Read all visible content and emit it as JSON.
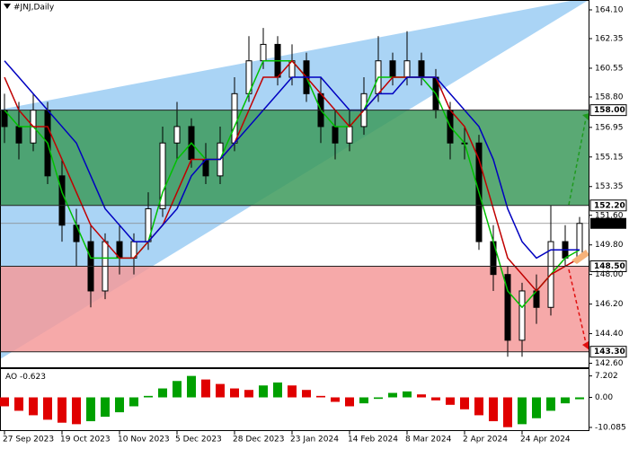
{
  "chart_data": {
    "type": "candlestick",
    "title": "#JNJ,Daily",
    "categories": [
      "27 Sep 2023",
      null,
      null,
      null,
      "19 Oct 2023",
      null,
      null,
      null,
      "10 Nov 2023",
      null,
      null,
      null,
      "5 Dec 2023",
      null,
      null,
      null,
      "28 Dec 2023",
      null,
      null,
      null,
      "23 Jan 2024",
      null,
      null,
      null,
      "14 Feb 2024",
      null,
      null,
      null,
      "8 Mar 2024",
      null,
      null,
      null,
      "2 Apr 2024",
      null,
      null,
      null,
      "24 Apr 2024",
      null,
      null,
      null,
      null
    ],
    "open": [
      158,
      157,
      156,
      158,
      154,
      151,
      150,
      147,
      150,
      149,
      150,
      152,
      156,
      157,
      155,
      154,
      156,
      159,
      161,
      162,
      160,
      161,
      159,
      157,
      156,
      157,
      159,
      161,
      160,
      161,
      160,
      158,
      156,
      156,
      150,
      148,
      144,
      147,
      146,
      150,
      149
    ],
    "high": [
      159,
      158.5,
      159,
      158.5,
      155,
      152,
      151,
      150.5,
      151,
      150.5,
      153,
      157,
      158.5,
      157.5,
      156,
      157,
      160,
      162.5,
      163,
      162.5,
      162,
      161.5,
      160,
      158,
      158,
      160,
      162.5,
      161.5,
      162.8,
      161.5,
      160.5,
      158.5,
      157,
      156.5,
      151,
      148.5,
      147.5,
      148,
      152.2,
      151,
      151.5
    ],
    "low": [
      156,
      155,
      155.5,
      153.5,
      150,
      148.5,
      146,
      146.5,
      148,
      148,
      149.5,
      151.5,
      155,
      154.5,
      153.5,
      153.5,
      155.5,
      158.5,
      160.5,
      159.5,
      159.5,
      158.5,
      156,
      155,
      155.5,
      156.5,
      158.5,
      159.5,
      159.5,
      159.5,
      157.5,
      155,
      155,
      149.5,
      147,
      143,
      143,
      145,
      145.5,
      148.5,
      148.8
    ],
    "close": [
      157,
      156,
      158,
      154,
      151,
      150,
      147,
      150,
      149,
      150,
      152,
      156,
      157,
      155,
      154,
      156,
      159,
      161,
      162,
      160,
      161,
      159,
      157,
      156,
      157,
      159,
      161,
      160,
      161,
      160,
      158,
      156,
      156,
      150,
      148,
      144,
      147,
      146,
      150,
      149,
      151.11
    ],
    "candle_up_color": "#ffffff",
    "candle_down_color": "#000000",
    "moving_averages": [
      {
        "color": "#00c000",
        "values": [
          158,
          157,
          157,
          156,
          153,
          151,
          149,
          149,
          149,
          149,
          150,
          153,
          155,
          156,
          155,
          155,
          157,
          159,
          161,
          161,
          161,
          160,
          158,
          157,
          157,
          158,
          160,
          160,
          160,
          160,
          159,
          157,
          156,
          153,
          150,
          147,
          146,
          147,
          148,
          149,
          149.5
        ]
      },
      {
        "color": "#c00000",
        "values": [
          160,
          158,
          157,
          157,
          155,
          153,
          151,
          150,
          149,
          149,
          150,
          151,
          153,
          155,
          155,
          155,
          156,
          158,
          160,
          160,
          161,
          160,
          159,
          158,
          157,
          158,
          159,
          160,
          160,
          160,
          160,
          158,
          157,
          155,
          152,
          149,
          148,
          147,
          148,
          148.5,
          149
        ]
      },
      {
        "color": "#0000c0",
        "values": [
          161,
          160,
          159,
          158,
          157,
          156,
          154,
          152,
          151,
          150,
          150,
          151,
          152,
          154,
          155,
          155,
          156,
          157,
          158,
          159,
          160,
          160,
          160,
          159,
          158,
          158,
          159,
          159,
          160,
          160,
          160,
          159,
          158,
          157,
          155,
          152,
          150,
          149,
          149.5,
          149.5,
          149.5
        ]
      }
    ],
    "ylim": [
      142.3,
      164.7
    ],
    "yticks": [
      {
        "value": 164.1,
        "label": "164.10"
      },
      162.35,
      160.55,
      {
        "value": 158.8,
        "label": "158.80"
      },
      156.95,
      155.15,
      153.35,
      {
        "value": 151.6,
        "label": "151.60"
      },
      {
        "value": 149.8,
        "label": "149.80"
      },
      {
        "value": 148,
        "label": "148.00"
      },
      {
        "value": 146.2,
        "label": "146.20"
      },
      {
        "value": 144.4,
        "label": "144.40"
      },
      {
        "value": 142.6,
        "label": "142.60"
      }
    ],
    "zones": [
      {
        "high": {
          "value": 158,
          "label": "158.00"
        },
        "low": {
          "value": 152.2,
          "label": "152.20"
        },
        "color": "#3d9a5c"
      },
      {
        "high": {
          "value": 148.5,
          "label": "148.50"
        },
        "low": {
          "value": 143.3,
          "label": "143.30"
        },
        "color": "#f59a9a"
      }
    ],
    "last_price": 151.11,
    "indicator": {
      "name": "AO",
      "current": -0.623,
      "values": [
        -3,
        -4.5,
        -6,
        -7.5,
        -8.5,
        -9,
        -8,
        -6.5,
        -5,
        -3,
        0.5,
        3,
        5.5,
        7.2,
        6,
        4.5,
        3,
        2.5,
        4,
        5,
        4,
        2.5,
        0.5,
        -1.5,
        -3,
        -2,
        -0.5,
        1.5,
        2,
        1,
        -1,
        -2.5,
        -4,
        -6,
        -8,
        -10,
        -9,
        -7,
        -4.5,
        -2,
        -0.623
      ],
      "up_color": "#00a000",
      "down_color": "#e00000",
      "ylim": [
        -11,
        9.5
      ],
      "yticks": [
        {
          "value": 7.202,
          "label": "7.202"
        },
        {
          "value": 0,
          "label": "0.00"
        },
        {
          "value": -10.085,
          "label": "-10.085"
        }
      ]
    }
  }
}
